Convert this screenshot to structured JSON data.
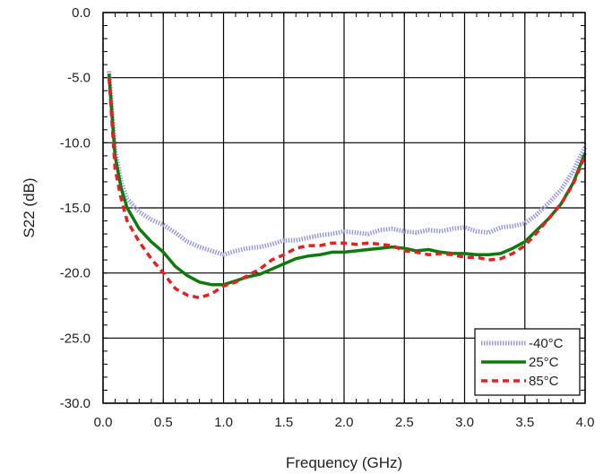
{
  "chart_data": {
    "type": "line",
    "title": "",
    "xlabel": "Frequency (GHz)",
    "ylabel": "S22 (dB)",
    "xlim": [
      0.0,
      4.0
    ],
    "ylim": [
      -30.0,
      0.0
    ],
    "x_ticks": [
      "0.0",
      "0.5",
      "1.0",
      "1.5",
      "2.0",
      "2.5",
      "3.0",
      "3.5",
      "4.0"
    ],
    "y_ticks": [
      "0.0",
      "-5.0",
      "-10.0",
      "-15.0",
      "-20.0",
      "-25.0",
      "-30.0"
    ],
    "grid": true,
    "legend_position": "bottom-right",
    "series": [
      {
        "name": "-40°C",
        "color": "#9a9ae6",
        "style": "dotted-thick",
        "points": [
          [
            0.05,
            -4.5
          ],
          [
            0.1,
            -10.5
          ],
          [
            0.15,
            -13
          ],
          [
            0.2,
            -14.3
          ],
          [
            0.3,
            -15.3
          ],
          [
            0.4,
            -15.9
          ],
          [
            0.5,
            -16.3
          ],
          [
            0.6,
            -16.9
          ],
          [
            0.7,
            -17.6
          ],
          [
            0.8,
            -18.0
          ],
          [
            0.9,
            -18.3
          ],
          [
            1.0,
            -18.6
          ],
          [
            1.1,
            -18.3
          ],
          [
            1.2,
            -18.1
          ],
          [
            1.3,
            -18.0
          ],
          [
            1.4,
            -17.8
          ],
          [
            1.5,
            -17.5
          ],
          [
            1.6,
            -17.5
          ],
          [
            1.7,
            -17.3
          ],
          [
            1.8,
            -17.1
          ],
          [
            1.9,
            -17.0
          ],
          [
            2.0,
            -16.8
          ],
          [
            2.1,
            -16.9
          ],
          [
            2.2,
            -17.0
          ],
          [
            2.3,
            -16.7
          ],
          [
            2.4,
            -16.6
          ],
          [
            2.5,
            -16.8
          ],
          [
            2.6,
            -16.9
          ],
          [
            2.7,
            -16.7
          ],
          [
            2.8,
            -16.8
          ],
          [
            2.9,
            -16.6
          ],
          [
            3.0,
            -16.5
          ],
          [
            3.1,
            -16.8
          ],
          [
            3.2,
            -16.9
          ],
          [
            3.3,
            -16.5
          ],
          [
            3.4,
            -16.4
          ],
          [
            3.5,
            -16.2
          ],
          [
            3.6,
            -15.5
          ],
          [
            3.7,
            -14.6
          ],
          [
            3.8,
            -13.6
          ],
          [
            3.9,
            -12.2
          ],
          [
            4.0,
            -10.3
          ]
        ]
      },
      {
        "name": "25°C",
        "color": "#0e7a0e",
        "style": "solid",
        "points": [
          [
            0.05,
            -4.7
          ],
          [
            0.1,
            -11.0
          ],
          [
            0.15,
            -13.5
          ],
          [
            0.2,
            -15.0
          ],
          [
            0.3,
            -16.6
          ],
          [
            0.4,
            -17.6
          ],
          [
            0.5,
            -18.4
          ],
          [
            0.6,
            -19.5
          ],
          [
            0.7,
            -20.2
          ],
          [
            0.8,
            -20.7
          ],
          [
            0.9,
            -20.9
          ],
          [
            1.0,
            -20.9
          ],
          [
            1.1,
            -20.6
          ],
          [
            1.2,
            -20.3
          ],
          [
            1.3,
            -20.1
          ],
          [
            1.4,
            -19.7
          ],
          [
            1.5,
            -19.3
          ],
          [
            1.6,
            -18.9
          ],
          [
            1.7,
            -18.7
          ],
          [
            1.8,
            -18.6
          ],
          [
            1.9,
            -18.4
          ],
          [
            2.0,
            -18.4
          ],
          [
            2.1,
            -18.3
          ],
          [
            2.2,
            -18.2
          ],
          [
            2.3,
            -18.1
          ],
          [
            2.4,
            -18.0
          ],
          [
            2.5,
            -18.1
          ],
          [
            2.6,
            -18.3
          ],
          [
            2.7,
            -18.2
          ],
          [
            2.8,
            -18.4
          ],
          [
            2.9,
            -18.5
          ],
          [
            3.0,
            -18.5
          ],
          [
            3.1,
            -18.6
          ],
          [
            3.2,
            -18.6
          ],
          [
            3.3,
            -18.5
          ],
          [
            3.4,
            -18.1
          ],
          [
            3.5,
            -17.6
          ],
          [
            3.6,
            -16.7
          ],
          [
            3.7,
            -15.8
          ],
          [
            3.8,
            -14.7
          ],
          [
            3.9,
            -13.1
          ],
          [
            4.0,
            -10.8
          ]
        ]
      },
      {
        "name": "85°C",
        "color": "#e62020",
        "style": "dashed",
        "points": [
          [
            0.05,
            -5.0
          ],
          [
            0.1,
            -12.0
          ],
          [
            0.15,
            -14.3
          ],
          [
            0.2,
            -16.0
          ],
          [
            0.3,
            -17.6
          ],
          [
            0.4,
            -18.9
          ],
          [
            0.5,
            -20.0
          ],
          [
            0.6,
            -21.2
          ],
          [
            0.7,
            -21.7
          ],
          [
            0.8,
            -21.9
          ],
          [
            0.9,
            -21.6
          ],
          [
            1.0,
            -21.0
          ],
          [
            1.1,
            -20.7
          ],
          [
            1.2,
            -20.2
          ],
          [
            1.3,
            -19.7
          ],
          [
            1.4,
            -19.0
          ],
          [
            1.5,
            -18.6
          ],
          [
            1.6,
            -18.1
          ],
          [
            1.7,
            -17.9
          ],
          [
            1.8,
            -17.9
          ],
          [
            1.9,
            -17.7
          ],
          [
            2.0,
            -17.7
          ],
          [
            2.1,
            -17.8
          ],
          [
            2.2,
            -17.7
          ],
          [
            2.3,
            -17.8
          ],
          [
            2.4,
            -17.9
          ],
          [
            2.5,
            -18.3
          ],
          [
            2.6,
            -18.4
          ],
          [
            2.7,
            -18.6
          ],
          [
            2.8,
            -18.5
          ],
          [
            2.9,
            -18.6
          ],
          [
            3.0,
            -18.8
          ],
          [
            3.1,
            -18.8
          ],
          [
            3.2,
            -19.0
          ],
          [
            3.3,
            -18.9
          ],
          [
            3.4,
            -18.5
          ],
          [
            3.5,
            -17.9
          ],
          [
            3.6,
            -16.9
          ],
          [
            3.7,
            -15.8
          ],
          [
            3.8,
            -14.7
          ],
          [
            3.9,
            -13.2
          ],
          [
            4.0,
            -11.0
          ]
        ]
      }
    ]
  }
}
